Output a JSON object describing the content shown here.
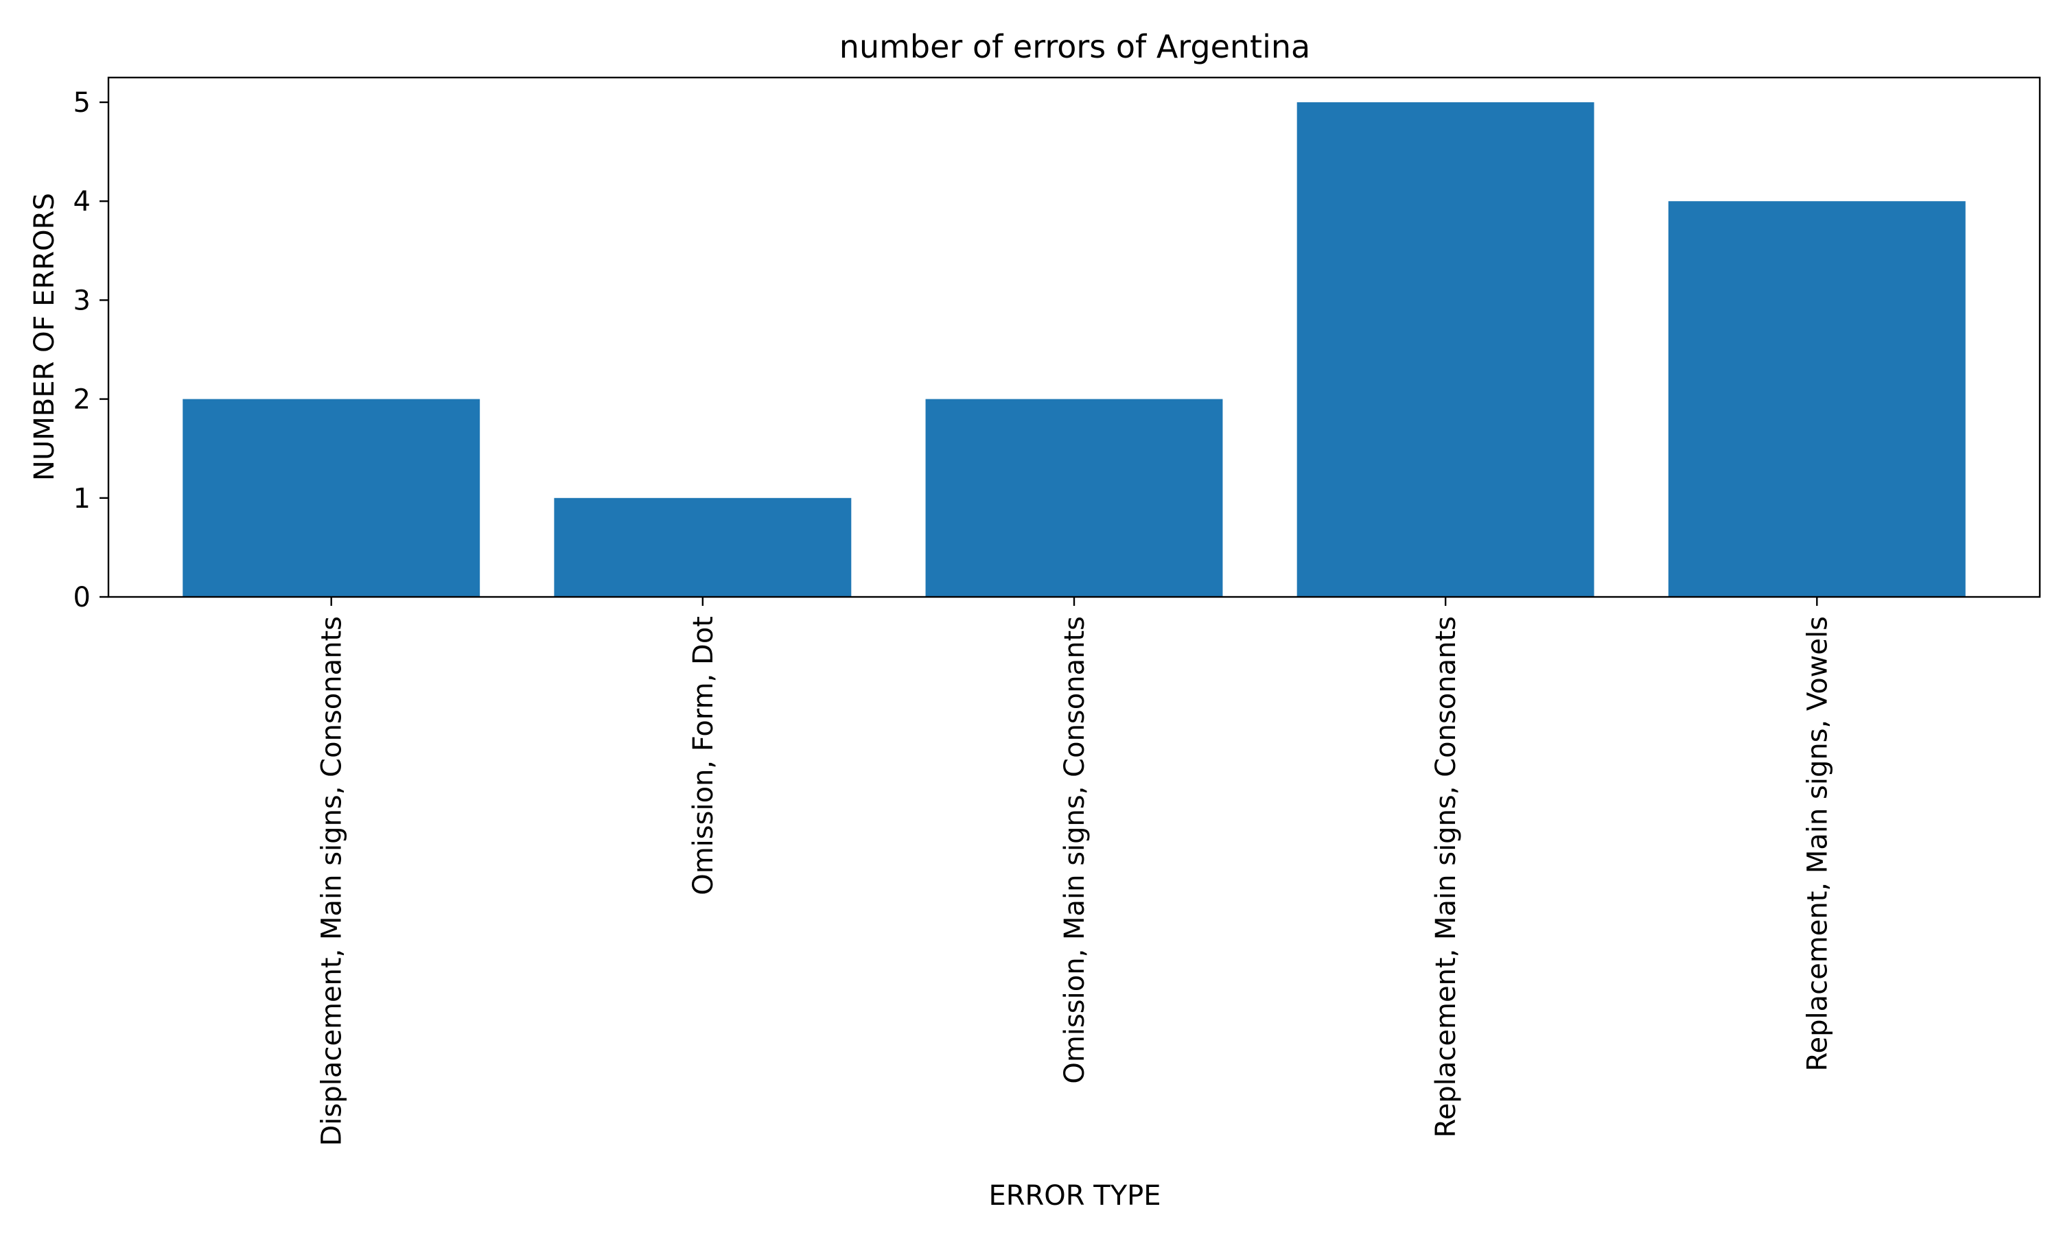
{
  "chart_data": {
    "type": "bar",
    "title": "number of errors of Argentina",
    "xlabel": "ERROR TYPE",
    "ylabel": "NUMBER OF ERRORS",
    "categories": [
      "Displacement, Main signs, Consonants",
      "Omission, Form, Dot",
      "Omission, Main signs, Consonants",
      "Replacement, Main signs, Consonants",
      "Replacement, Main signs, Vowels"
    ],
    "values": [
      2,
      1,
      2,
      5,
      4
    ],
    "ylim": [
      0,
      5.25
    ],
    "yticks": [
      "0",
      "1",
      "2",
      "3",
      "4",
      "5"
    ],
    "grid": false,
    "bar_color": "#1f77b4"
  }
}
